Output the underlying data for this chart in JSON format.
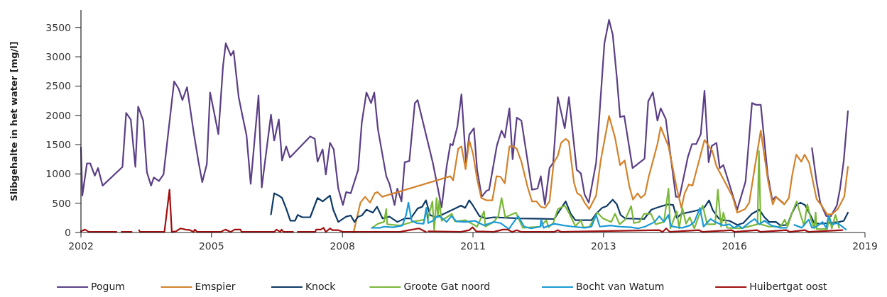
{
  "chart_data": {
    "type": "line",
    "ylabel": "Slibgehalte in het water [mg/l]",
    "xlim": [
      2002,
      2019
    ],
    "xticks": [
      {
        "value": 2002,
        "label": "2002"
      },
      {
        "value": 2004.83,
        "label": "2005"
      },
      {
        "value": 2007.67,
        "label": "2008"
      },
      {
        "value": 2010.5,
        "label": "2011"
      },
      {
        "value": 2013.33,
        "label": "2013"
      },
      {
        "value": 2016.17,
        "label": "2016"
      },
      {
        "value": 2019,
        "label": "2019"
      }
    ],
    "ylim": [
      0,
      3800
    ],
    "yticks": [
      0,
      500,
      1000,
      1500,
      2000,
      2500,
      3000,
      3500
    ],
    "grid": false,
    "legend": "bottom",
    "marker": "none",
    "series": [
      {
        "name": "Pogum",
        "color": "#5b3f87",
        "x": [
          2002.0,
          2002.03,
          2002.13,
          2002.2,
          2002.3,
          2002.37,
          2002.47,
          2002.9,
          2002.98,
          2003.08,
          2003.18,
          2003.24,
          2003.35,
          2003.43,
          2003.52,
          2003.58,
          2003.69,
          2003.79,
          2004.02,
          2004.12,
          2004.2,
          2004.3,
          2004.45,
          2004.55,
          2004.63,
          2004.73,
          2004.8,
          2004.89,
          2004.98,
          2005.08,
          2005.14,
          2005.25,
          2005.31,
          2005.42,
          2005.51,
          2005.59,
          2005.68,
          2005.85,
          2005.92,
          2006.12,
          2006.19,
          2006.29,
          2006.36,
          2006.45,
          2006.53,
          2006.97,
          2007.07,
          2007.13,
          2007.24,
          2007.31,
          2007.4,
          2007.48,
          2007.58,
          2007.68,
          2007.75,
          2007.85,
          2008.01,
          2008.09,
          2008.19,
          2008.29,
          2008.36,
          2008.44,
          2008.62,
          2008.69,
          2008.8,
          2008.86,
          2008.95,
          2009.02,
          2009.12,
          2009.24,
          2009.3,
          2009.63,
          2009.82,
          2009.93,
          2010.01,
          2010.06,
          2010.16,
          2010.25,
          2010.35,
          2010.42,
          2010.52,
          2010.59,
          2010.69,
          2010.79,
          2010.85,
          2011.02,
          2011.12,
          2011.19,
          2011.29,
          2011.36,
          2011.45,
          2011.55,
          2011.78,
          2011.9,
          2011.97,
          2012.06,
          2012.16,
          2012.24,
          2012.34,
          2012.49,
          2012.58,
          2012.75,
          2012.84,
          2012.92,
          2013.01,
          2013.17,
          2013.35,
          2013.45,
          2013.53,
          2013.62,
          2013.69,
          2013.78,
          2013.96,
          2014.22,
          2014.3,
          2014.4,
          2014.5,
          2014.57,
          2014.68,
          2014.9,
          2014.98,
          2015.16,
          2015.25,
          2015.34,
          2015.44,
          2015.52,
          2015.61,
          2015.68,
          2015.78,
          2015.85,
          2015.93,
          2016.23,
          2016.41,
          2016.55,
          2016.64,
          2016.74,
          2016.89,
          2016.99,
          2017.06,
          2017.22,
          2017.5,
          2017.85,
          2017.95,
          2018.03,
          2018.16,
          2018.26,
          2018.39,
          2018.46,
          2018.54,
          2018.63
        ],
        "values": [
          1450,
          630,
          1180,
          1180,
          970,
          1100,
          800,
          1120,
          2040,
          1930,
          1120,
          2150,
          1910,
          1030,
          800,
          940,
          880,
          990,
          2580,
          2450,
          2260,
          2480,
          1680,
          1200,
          860,
          1170,
          2390,
          2040,
          1680,
          2840,
          3230,
          3020,
          3100,
          2310,
          1960,
          1660,
          830,
          2340,
          770,
          2010,
          1570,
          1930,
          1230,
          1470,
          1280,
          1640,
          1600,
          1210,
          1420,
          990,
          1530,
          1420,
          750,
          470,
          690,
          670,
          1070,
          1880,
          2390,
          2210,
          2390,
          1760,
          960,
          830,
          470,
          750,
          530,
          1200,
          1220,
          2210,
          2260,
          1190,
          430,
          1130,
          1510,
          1490,
          1800,
          2360,
          1190,
          1670,
          1780,
          1070,
          610,
          710,
          730,
          1490,
          1740,
          1620,
          2120,
          1250,
          1960,
          1910,
          730,
          750,
          960,
          480,
          1100,
          1190,
          2310,
          1780,
          2310,
          1070,
          1010,
          650,
          510,
          1190,
          3230,
          3630,
          3380,
          2640,
          1970,
          1990,
          1100,
          1260,
          2240,
          2390,
          1910,
          2120,
          1940,
          610,
          610,
          1290,
          1510,
          1510,
          1680,
          2420,
          1200,
          1480,
          1530,
          1100,
          1150,
          390,
          870,
          2210,
          2180,
          2180,
          990,
          550,
          610,
          510,
          null,
          1440,
          870,
          510,
          280,
          280,
          460,
          750,
          1230,
          2070
        ]
      },
      {
        "name": "Emspier",
        "color": "#d2822a",
        "x": [
          2007.91,
          2008.06,
          2008.16,
          2008.27,
          2008.37,
          2008.43,
          2008.53,
          2010.01,
          2010.07,
          2010.18,
          2010.25,
          2010.34,
          2010.42,
          2010.5,
          2010.59,
          2010.68,
          2010.79,
          2010.92,
          2011.01,
          2011.1,
          2011.19,
          2011.29,
          2011.38,
          2011.45,
          2011.55,
          2011.68,
          2011.78,
          2011.88,
          2011.97,
          2012.06,
          2012.16,
          2012.25,
          2012.34,
          2012.41,
          2012.51,
          2012.58,
          2012.69,
          2012.76,
          2012.84,
          2012.92,
          2013.02,
          2013.17,
          2013.27,
          2013.45,
          2013.58,
          2013.69,
          2013.79,
          2013.89,
          2013.97,
          2014.07,
          2014.14,
          2014.23,
          2014.31,
          2014.5,
          2014.57,
          2014.74,
          2014.92,
          2015.02,
          2015.09,
          2015.18,
          2015.26,
          2015.42,
          2015.52,
          2015.69,
          2015.78,
          2015.93,
          2016.13,
          2016.23,
          2016.4,
          2016.49,
          2016.61,
          2016.74,
          2016.9,
          2017.0,
          2017.07,
          2017.25,
          2017.35,
          2017.42,
          2017.51,
          2017.62,
          2017.69,
          2017.79,
          2017.95,
          2018.06,
          2018.18,
          2018.28,
          2018.41,
          2018.55,
          2018.63
        ],
        "values": [
          0,
          510,
          610,
          510,
          670,
          690,
          610,
          960,
          890,
          1430,
          1470,
          1080,
          1570,
          1350,
          910,
          590,
          550,
          550,
          960,
          950,
          840,
          1470,
          1470,
          1430,
          1210,
          790,
          530,
          530,
          440,
          420,
          530,
          1190,
          1310,
          1530,
          1600,
          1550,
          850,
          670,
          630,
          510,
          400,
          630,
          1230,
          1990,
          1620,
          1150,
          1230,
          790,
          560,
          670,
          590,
          650,
          950,
          1510,
          1800,
          1470,
          750,
          420,
          670,
          820,
          800,
          1280,
          1580,
          1390,
          1130,
          910,
          610,
          340,
          400,
          510,
          1110,
          1740,
          870,
          480,
          610,
          480,
          590,
          970,
          1330,
          1210,
          1330,
          1190,
          570,
          460,
          310,
          310,
          400,
          610,
          1120
        ]
      },
      {
        "name": "Knock",
        "color": "#0f3a66",
        "x": [
          2006.12,
          2006.19,
          2006.29,
          2006.36,
          2006.45,
          2006.54,
          2006.64,
          2006.7,
          2006.8,
          2006.97,
          2007.13,
          2007.24,
          2007.4,
          2007.47,
          2007.58,
          2007.75,
          2007.85,
          2007.93,
          2008.01,
          2008.09,
          2008.19,
          2008.33,
          2008.42,
          2008.54,
          2008.69,
          2008.86,
          2009.02,
          2009.15,
          2009.3,
          2009.4,
          2009.48,
          2009.57,
          2009.68,
          2009.82,
          2010.14,
          2010.24,
          2010.33,
          2010.42,
          2010.5,
          2010.64,
          2010.79,
          2010.95,
          2011.5,
          2012.26,
          2012.35,
          2012.51,
          2012.62,
          2012.72,
          2013.07,
          2013.17,
          2013.3,
          2013.4,
          2013.53,
          2013.62,
          2013.7,
          2013.8,
          2014.21,
          2014.37,
          2014.51,
          2014.72,
          2014.84,
          2014.92,
          2015.02,
          2015.27,
          2015.42,
          2015.52,
          2015.62,
          2015.7,
          2015.83,
          2015.93,
          2016.06,
          2016.23,
          2016.36,
          2016.55,
          2016.71,
          2016.81,
          2016.92,
          2017.07,
          2017.17,
          2017.32,
          2017.41,
          2017.51,
          2017.6,
          2017.7,
          2017.8,
          2017.9,
          2018.0,
          2018.18,
          2018.44,
          2018.54,
          2018.63
        ],
        "values": [
          310,
          670,
          630,
          590,
          410,
          200,
          200,
          300,
          260,
          260,
          590,
          530,
          630,
          390,
          180,
          270,
          290,
          180,
          270,
          290,
          390,
          340,
          440,
          240,
          270,
          180,
          240,
          240,
          410,
          440,
          550,
          300,
          260,
          300,
          420,
          460,
          420,
          550,
          460,
          280,
          240,
          260,
          240,
          230,
          340,
          530,
          320,
          210,
          210,
          320,
          420,
          450,
          560,
          480,
          300,
          240,
          230,
          390,
          430,
          480,
          470,
          250,
          320,
          360,
          390,
          430,
          550,
          380,
          240,
          210,
          200,
          130,
          160,
          320,
          390,
          270,
          180,
          180,
          120,
          130,
          320,
          470,
          510,
          470,
          320,
          160,
          150,
          160,
          180,
          200,
          340
        ]
      },
      {
        "name": "Groote Gat noord",
        "color": "#7ab83a",
        "x": [
          2008.31,
          2008.44,
          2008.57,
          2008.62,
          2008.64,
          2008.77,
          2008.92,
          2009.1,
          2009.23,
          2009.45,
          2009.49,
          2009.52,
          2009.62,
          2009.66,
          2009.71,
          2009.74,
          2009.77,
          2009.82,
          2010.04,
          2010.11,
          2010.34,
          2010.59,
          2010.74,
          2010.77,
          2010.95,
          2011.05,
          2011.12,
          2011.2,
          2011.43,
          2011.5,
          2011.58,
          2011.96,
          2012.09,
          2012.14,
          2012.24,
          2012.34,
          2012.49,
          2012.58,
          2012.72,
          2012.84,
          2012.89,
          2013.02,
          2013.2,
          2013.32,
          2013.5,
          2013.58,
          2013.68,
          2013.8,
          2013.93,
          2013.99,
          2014.11,
          2014.21,
          2014.36,
          2014.46,
          2014.64,
          2014.74,
          2014.78,
          2014.92,
          2014.97,
          2015.04,
          2015.12,
          2015.2,
          2015.3,
          2015.48,
          2015.58,
          2015.75,
          2015.81,
          2015.88,
          2015.93,
          2016.01,
          2016.31,
          2016.67,
          2016.7,
          2016.74,
          2016.92,
          2017.17,
          2017.26,
          2017.32,
          2017.42,
          2017.52,
          2017.62,
          2017.68,
          2017.75,
          2017.83,
          2017.9,
          2017.93,
          2017.95,
          2018.18,
          2018.23,
          2018.28,
          2018.36,
          2018.44
        ],
        "values": [
          80,
          150,
          180,
          400,
          140,
          130,
          120,
          160,
          190,
          220,
          420,
          220,
          530,
          40,
          590,
          260,
          550,
          200,
          320,
          190,
          210,
          100,
          360,
          100,
          180,
          280,
          590,
          260,
          340,
          220,
          80,
          100,
          210,
          90,
          160,
          400,
          460,
          340,
          110,
          210,
          90,
          90,
          340,
          240,
          180,
          320,
          140,
          220,
          450,
          160,
          180,
          320,
          320,
          140,
          180,
          750,
          70,
          360,
          70,
          420,
          150,
          260,
          70,
          460,
          140,
          140,
          730,
          100,
          340,
          80,
          70,
          140,
          1390,
          140,
          100,
          100,
          220,
          100,
          340,
          530,
          260,
          120,
          480,
          220,
          70,
          340,
          60,
          60,
          280,
          70,
          300,
          80
        ]
      },
      {
        "name": "Bocht van Watum",
        "color": "#1a9ad6",
        "x": [
          2008.31,
          2008.49,
          2008.57,
          2008.77,
          2008.97,
          2009.05,
          2009.1,
          2009.17,
          2009.28,
          2009.43,
          2009.49,
          2009.53,
          2009.63,
          2009.73,
          2009.81,
          2009.93,
          2010.03,
          2010.14,
          2010.34,
          2010.54,
          2010.74,
          2010.95,
          2011.1,
          2011.28,
          2011.35,
          2011.48,
          2011.61,
          2011.76,
          2011.96,
          2011.98,
          2012.03,
          2012.26,
          2012.47,
          2012.67,
          2012.92,
          2013.07,
          2013.17,
          2013.25,
          2013.48,
          2013.68,
          2013.93,
          2014.08,
          2014.23,
          2014.44,
          2014.54,
          2014.64,
          2014.74,
          2014.79,
          2014.92,
          2015.04,
          2015.2,
          2015.3,
          2015.42,
          2015.5,
          2015.65,
          2015.75,
          2015.93,
          2016.06,
          2016.16,
          2016.26,
          2016.34,
          2016.51,
          2016.61,
          2016.71,
          2016.82,
          2016.97,
          2017.17,
          2017.3,
          2017.4,
          2017.47,
          2017.63,
          2017.78,
          2017.85,
          2017.95,
          2018.08,
          2018.16,
          2018.21,
          2018.28,
          2018.41,
          2018.59
        ],
        "values": [
          80,
          80,
          100,
          90,
          120,
          300,
          510,
          200,
          160,
          150,
          420,
          160,
          200,
          280,
          260,
          180,
          280,
          190,
          180,
          200,
          120,
          180,
          160,
          60,
          140,
          280,
          100,
          70,
          100,
          220,
          80,
          150,
          120,
          100,
          80,
          100,
          300,
          100,
          120,
          100,
          90,
          70,
          100,
          180,
          280,
          180,
          300,
          110,
          90,
          80,
          120,
          180,
          420,
          100,
          230,
          180,
          120,
          140,
          80,
          120,
          70,
          180,
          230,
          140,
          200,
          120,
          80,
          80,
          null,
          130,
          80,
          220,
          80,
          100,
          180,
          80,
          280,
          140,
          160,
          50
        ]
      },
      {
        "name": "Huibertgat oost",
        "color": "#a00f0f",
        "x": [
          2002.0,
          2002.09,
          2002.17,
          2002.77,
          2002.82,
          2002.88,
          2003.1,
          2003.18,
          2003.26,
          2003.28,
          2003.81,
          2003.92,
          2003.97,
          2004.06,
          2004.16,
          2004.27,
          2004.37,
          2004.44,
          2004.47,
          2004.52,
          2005.03,
          2005.13,
          2005.25,
          2005.33,
          2005.46,
          2005.48,
          2006.19,
          2006.24,
          2006.32,
          2006.35,
          2006.39,
          2006.6,
          2006.65,
          2006.7,
          2007.08,
          2007.1,
          2007.2,
          2007.26,
          2007.31,
          2007.4,
          2007.45,
          2007.58,
          2007.69,
          2008.92,
          2009.12,
          2009.33,
          2009.48,
          2009.5,
          2009.53,
          2010.24,
          2010.42,
          2010.49,
          2010.57,
          2010.95,
          2011.15,
          2011.25,
          2011.35,
          2011.45,
          2011.55,
          2012.26,
          2012.34,
          2012.41,
          2014.54,
          2014.61,
          2014.69,
          2014.77,
          2015.4,
          2015.48,
          2016.11,
          2016.18,
          2016.66,
          2016.74,
          2017.3,
          2017.37,
          2017.7,
          2017.78,
          2018.51
        ],
        "values": [
          20,
          50,
          10,
          10,
          null,
          10,
          10,
          null,
          40,
          10,
          10,
          730,
          10,
          20,
          70,
          50,
          40,
          10,
          50,
          10,
          10,
          50,
          10,
          50,
          50,
          10,
          10,
          50,
          10,
          50,
          10,
          10,
          null,
          10,
          10,
          50,
          50,
          80,
          10,
          70,
          40,
          40,
          10,
          10,
          40,
          70,
          10,
          null,
          20,
          10,
          40,
          90,
          20,
          10,
          50,
          50,
          10,
          40,
          10,
          10,
          40,
          10,
          40,
          10,
          70,
          10,
          40,
          10,
          40,
          10,
          40,
          10,
          40,
          10,
          40,
          10,
          40
        ]
      }
    ]
  }
}
